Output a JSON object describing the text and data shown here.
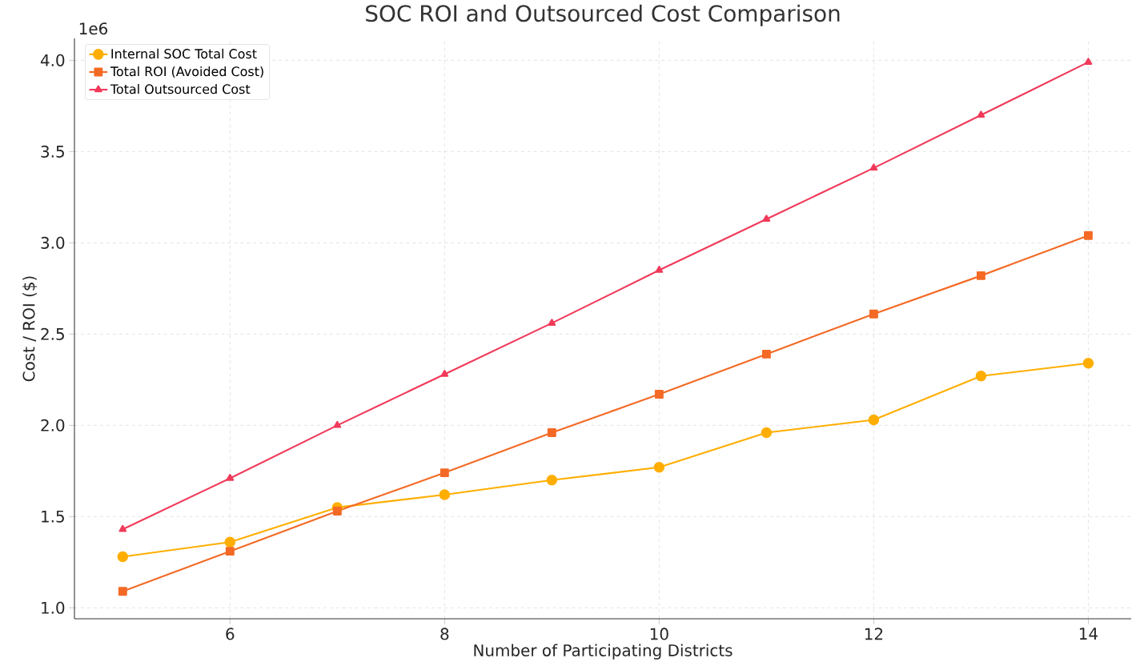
{
  "chart_data": {
    "type": "line",
    "title": "SOC ROI and Outsourced Cost Comparison",
    "xlabel": "Number of Participating Districts",
    "ylabel": "Cost / ROI ($)",
    "annotations": [
      "1e6"
    ],
    "x": [
      5,
      6,
      7,
      8,
      9,
      10,
      11,
      12,
      13,
      14
    ],
    "series": [
      {
        "name": "Internal SOC Total Cost",
        "color": "#ffae00",
        "marker": "circle",
        "values": [
          1.28,
          1.36,
          1.55,
          1.62,
          1.7,
          1.77,
          1.96,
          2.03,
          2.27,
          2.34
        ]
      },
      {
        "name": "Total ROI (Avoided Cost)",
        "color": "#f46a25",
        "marker": "square",
        "values": [
          1.09,
          1.31,
          1.53,
          1.74,
          1.96,
          2.17,
          2.39,
          2.61,
          2.82,
          3.04
        ]
      },
      {
        "name": "Total Outsourced Cost",
        "color": "#f03a5a",
        "marker": "triangle",
        "values": [
          1.43,
          1.71,
          2.0,
          2.28,
          2.56,
          2.85,
          3.13,
          3.41,
          3.7,
          3.99
        ]
      }
    ],
    "xlim": [
      4.55,
      14.4
    ],
    "ylim": [
      0.94,
      4.12
    ],
    "xticks": [
      6,
      8,
      10,
      12,
      14
    ],
    "yticks": [
      {
        "value": 1.0,
        "label": "1.0"
      },
      {
        "value": 1.5,
        "label": "1.5"
      },
      {
        "value": 2.0,
        "label": "2.0"
      },
      {
        "value": 2.5,
        "label": "2.5"
      },
      {
        "value": 3.0,
        "label": "3.0"
      },
      {
        "value": 3.5,
        "label": "3.5"
      },
      {
        "value": 4.0,
        "label": "4.0"
      }
    ],
    "grid": true,
    "legend": "top left",
    "line_style": "solid"
  }
}
